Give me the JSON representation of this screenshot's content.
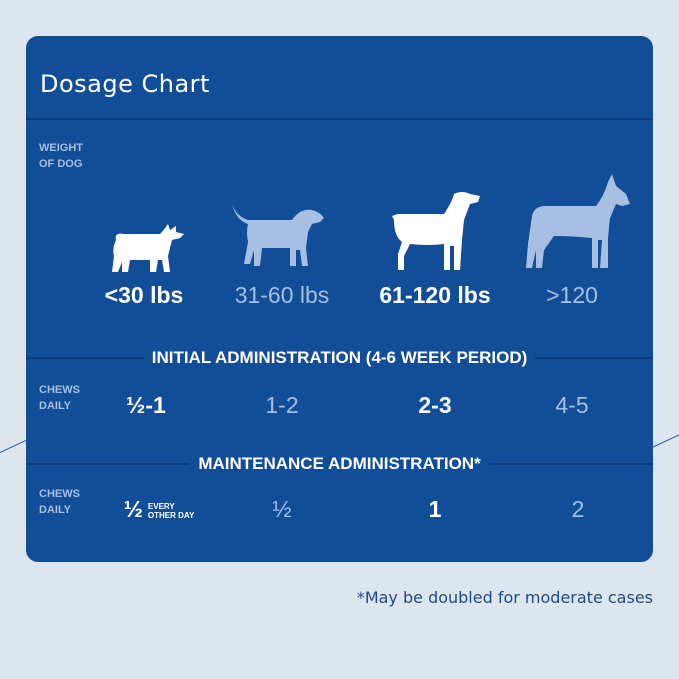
{
  "title": "Dosage Chart",
  "weight_label": [
    "WEIGHT",
    "OF DOG"
  ],
  "chews_label": [
    "CHEWS",
    "DAILY"
  ],
  "weights": [
    "<30 lbs",
    "31-60 lbs",
    "61-120 lbs",
    ">120"
  ],
  "initial": {
    "heading": "INITIAL ADMINISTRATION (4-6 WEEK PERIOD)",
    "doses": [
      "½-1",
      "1-2",
      "2-3",
      "4-5"
    ]
  },
  "maintenance": {
    "heading": "MAINTENANCE ADMINISTRATION*",
    "doses": [
      "½",
      "½",
      "1",
      "2"
    ],
    "first_note": [
      "EVERY",
      "OTHER DAY"
    ]
  },
  "footnote": "*May be doubled for moderate cases",
  "colors": {
    "card": "#124d98",
    "background": "#dde5ee",
    "highlight": "#ffffff",
    "muted": "#a7bfe3"
  },
  "icons": [
    "corgi-icon",
    "labrador-icon",
    "pointer-icon",
    "great-dane-icon"
  ]
}
